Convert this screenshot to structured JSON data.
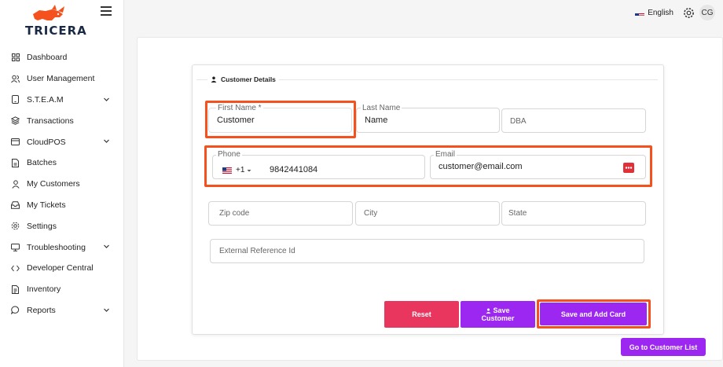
{
  "brand": {
    "name": "TRICERA",
    "accent": "#f4511e",
    "purple": "#9c27f0",
    "pink": "#e8365e"
  },
  "sidebar": {
    "items": [
      {
        "label": "Dashboard",
        "icon": "grid-icon",
        "has_chevron": false
      },
      {
        "label": "User Management",
        "icon": "users-icon",
        "has_chevron": false
      },
      {
        "label": "S.T.E.A.M",
        "icon": "tablet-icon",
        "has_chevron": true
      },
      {
        "label": "Transactions",
        "icon": "layers-icon",
        "has_chevron": false
      },
      {
        "label": "CloudPOS",
        "icon": "card-icon",
        "has_chevron": true
      },
      {
        "label": "Batches",
        "icon": "file-icon",
        "has_chevron": false
      },
      {
        "label": "My Customers",
        "icon": "person-icon",
        "has_chevron": false
      },
      {
        "label": "My Tickets",
        "icon": "inbox-icon",
        "has_chevron": false
      },
      {
        "label": "Settings",
        "icon": "gear-icon",
        "has_chevron": false
      },
      {
        "label": "Troubleshooting",
        "icon": "monitor-icon",
        "has_chevron": true
      },
      {
        "label": "Developer Central",
        "icon": "code-icon",
        "has_chevron": false
      },
      {
        "label": "Inventory",
        "icon": "list-file-icon",
        "has_chevron": false
      },
      {
        "label": "Reports",
        "icon": "chat-icon",
        "has_chevron": true
      }
    ]
  },
  "topbar": {
    "language": "English",
    "avatar_initials": "CG"
  },
  "form": {
    "section_title": "Customer Details",
    "first_name": {
      "label": "First Name *",
      "value": "Customer"
    },
    "last_name": {
      "label": "Last Name",
      "value": "Name"
    },
    "dba": {
      "placeholder": "DBA"
    },
    "phone": {
      "label": "Phone",
      "country_code": "+1",
      "value": "9842441084"
    },
    "email": {
      "label": "Email",
      "value": "customer@email.com"
    },
    "zip": {
      "placeholder": "Zip code"
    },
    "city": {
      "placeholder": "City"
    },
    "state": {
      "placeholder": "State"
    },
    "external_ref": {
      "placeholder": "External Reference Id"
    }
  },
  "buttons": {
    "reset": "Reset",
    "save_customer_line1": "Save",
    "save_customer_line2": "Customer",
    "save_add_card": "Save and Add Card",
    "go_to_list": "Go to Customer List"
  }
}
